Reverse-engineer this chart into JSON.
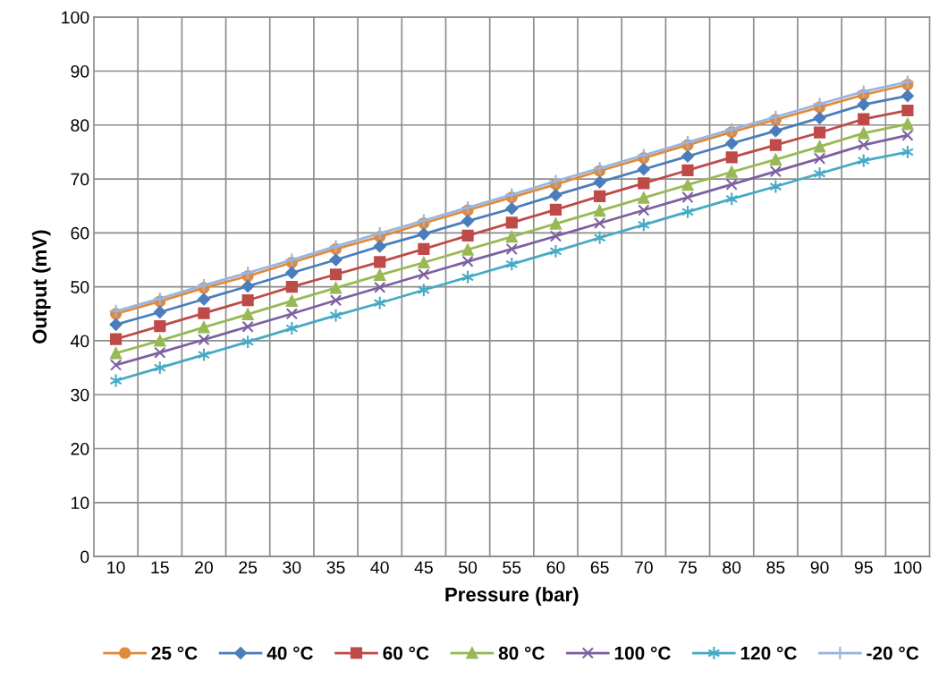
{
  "chart_data": {
    "type": "line",
    "xlabel": "Pressure (bar)",
    "ylabel": "Output (mV)",
    "categories": [
      "10",
      "15",
      "20",
      "25",
      "30",
      "35",
      "40",
      "45",
      "50",
      "55",
      "60",
      "65",
      "70",
      "75",
      "80",
      "85",
      "90",
      "95",
      "100"
    ],
    "ylim": [
      0,
      100
    ],
    "yticks": [
      0,
      10,
      20,
      30,
      40,
      50,
      60,
      70,
      80,
      90,
      100
    ],
    "grid": true,
    "legend": "bottom",
    "line_style": "solid",
    "series": [
      {
        "name": "25 °C",
        "color": "#e08a3c",
        "marker": "circle",
        "values": [
          45,
          47.3,
          49.8,
          52,
          54.5,
          57,
          59.3,
          61.8,
          64.2,
          66.6,
          69,
          71.5,
          73.9,
          76.3,
          78.7,
          81,
          83.3,
          85.6,
          87.5
        ]
      },
      {
        "name": "40 °C",
        "color": "#4a7ebb",
        "marker": "diamond",
        "values": [
          43,
          45.3,
          47.7,
          50.1,
          52.6,
          55,
          57.5,
          59.8,
          62.2,
          64.5,
          67,
          69.4,
          71.8,
          74.2,
          76.6,
          78.9,
          81.3,
          83.8,
          85.4
        ]
      },
      {
        "name": "60 °C",
        "color": "#be4b48",
        "marker": "square",
        "values": [
          40.3,
          42.7,
          45.1,
          47.5,
          50,
          52.3,
          54.6,
          57,
          59.5,
          61.9,
          64.3,
          66.8,
          69.2,
          71.6,
          74,
          76.3,
          78.6,
          81.1,
          82.7
        ]
      },
      {
        "name": "80 °C",
        "color": "#98b954",
        "marker": "triangle",
        "values": [
          37.7,
          40,
          42.5,
          44.9,
          47.4,
          49.8,
          52.2,
          54.5,
          56.9,
          59.3,
          61.7,
          64.1,
          66.5,
          68.9,
          71.3,
          73.6,
          76,
          78.5,
          80.2
        ]
      },
      {
        "name": "100 °C",
        "color": "#7d60a0",
        "marker": "x",
        "values": [
          35.5,
          37.8,
          40.2,
          42.6,
          45,
          47.5,
          49.9,
          52.3,
          54.7,
          57,
          59.4,
          61.8,
          64.2,
          66.6,
          69,
          71.4,
          73.8,
          76.3,
          78.1
        ]
      },
      {
        "name": "120 °C",
        "color": "#46aac5",
        "marker": "cross",
        "values": [
          32.6,
          35,
          37.4,
          39.8,
          42.3,
          44.7,
          47,
          49.4,
          51.8,
          54.2,
          56.6,
          59.1,
          61.5,
          63.9,
          66.3,
          68.6,
          71,
          73.4,
          75
        ]
      },
      {
        "name": "-20 °C",
        "color": "#98b4e0",
        "marker": "plus",
        "values": [
          45.5,
          47.8,
          50.3,
          52.6,
          55,
          57.5,
          59.9,
          62.3,
          64.7,
          67.1,
          69.6,
          72,
          74.4,
          76.8,
          79.2,
          81.5,
          83.9,
          86.2,
          88
        ]
      }
    ]
  }
}
